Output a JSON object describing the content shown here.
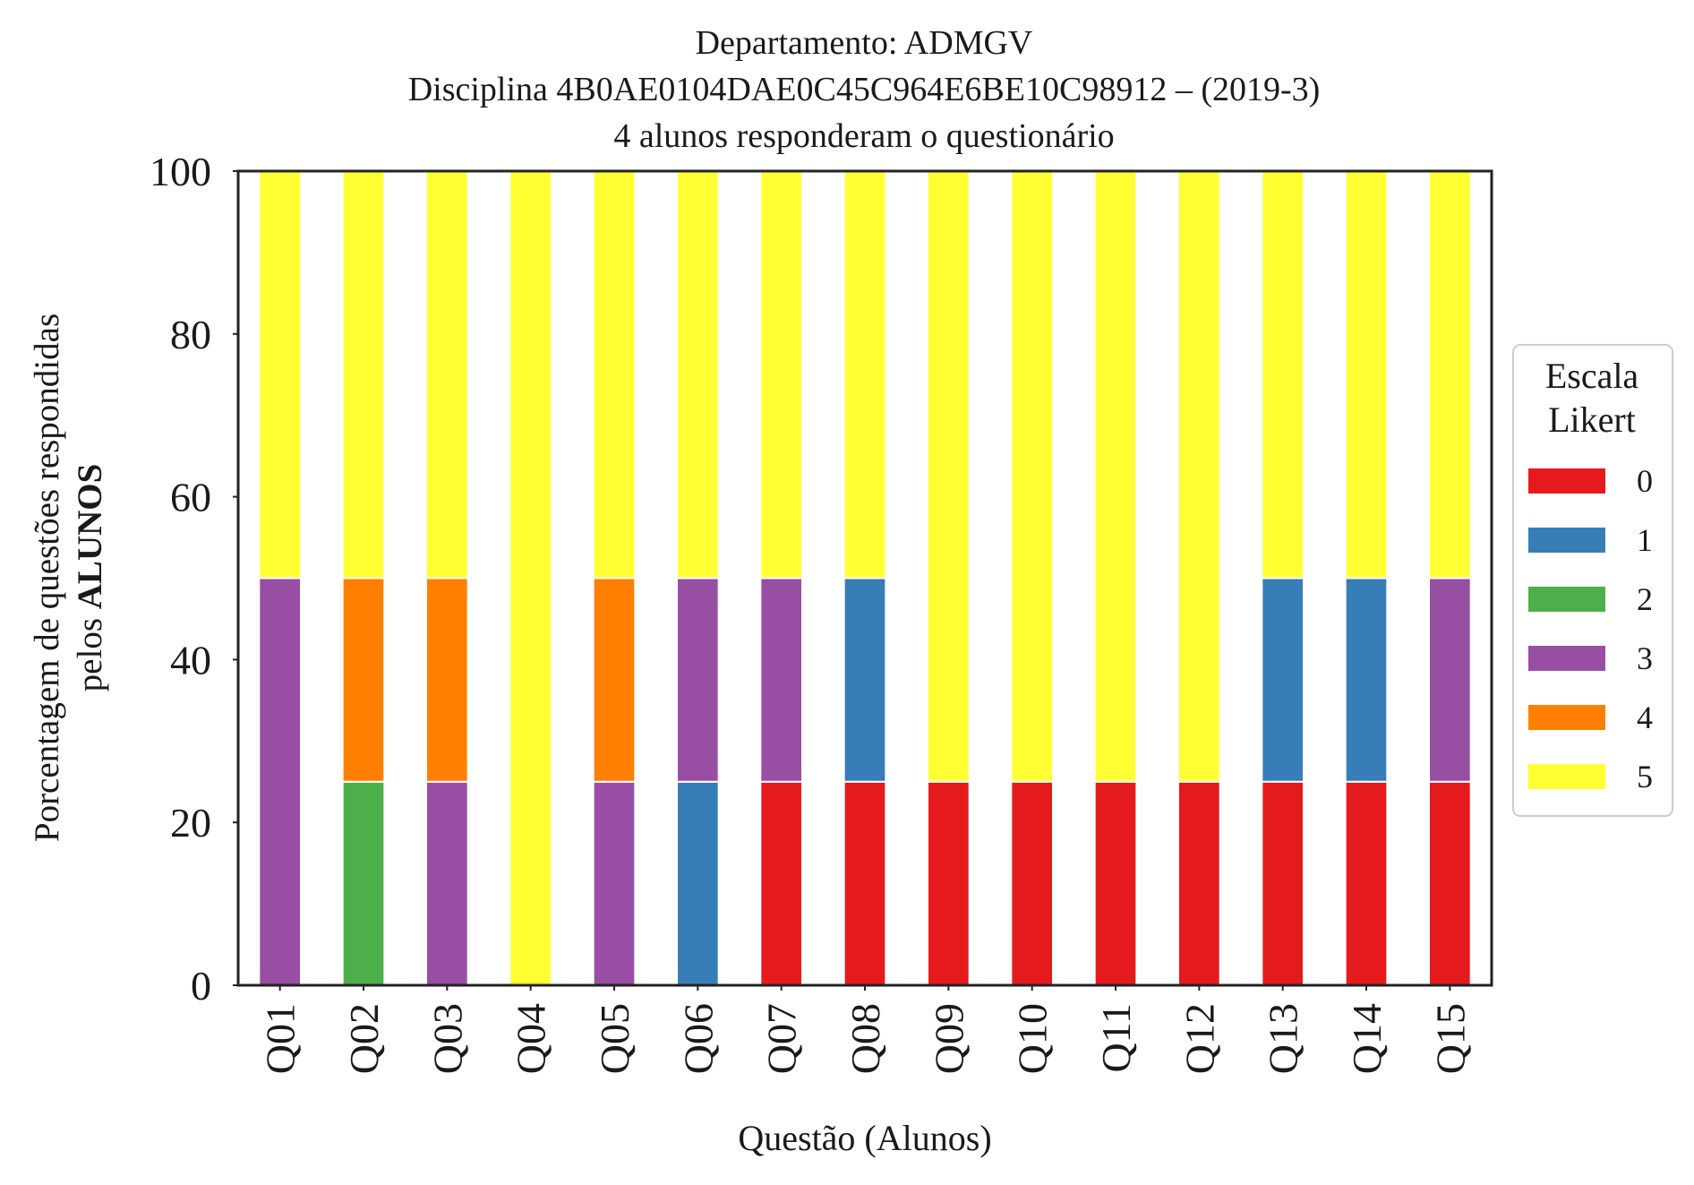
{
  "chart_data": {
    "type": "bar",
    "stacked": true,
    "title_lines": [
      "Departamento: ADMGV",
      "Disciplina 4B0AE0104DAE0C45C964E6BE10C98912 – (2019-3)",
      "4 alunos responderam o questionário"
    ],
    "xlabel": "Questão (Alunos)",
    "ylabel_line1": "Porcentagem de questões respondidas",
    "ylabel_line2_prefix": "pelos ",
    "ylabel_line2_bold": "ALUNOS",
    "ylim": [
      0,
      100
    ],
    "yticks": [
      0,
      20,
      40,
      60,
      80,
      100
    ],
    "grid": false,
    "categories": [
      "Q01",
      "Q02",
      "Q03",
      "Q04",
      "Q05",
      "Q06",
      "Q07",
      "Q08",
      "Q09",
      "Q10",
      "Q11",
      "Q12",
      "Q13",
      "Q14",
      "Q15"
    ],
    "legend": {
      "title_lines": [
        "Escala",
        "Likert"
      ],
      "placement": "right-center"
    },
    "series": [
      {
        "name": "0",
        "color": "#e41a1c",
        "values": [
          0,
          0,
          0,
          0,
          0,
          0,
          25,
          25,
          25,
          25,
          25,
          25,
          25,
          25,
          25
        ]
      },
      {
        "name": "1",
        "color": "#377eb8",
        "values": [
          0,
          0,
          0,
          0,
          0,
          25,
          0,
          25,
          0,
          0,
          0,
          0,
          25,
          25,
          0
        ]
      },
      {
        "name": "2",
        "color": "#4daf4a",
        "values": [
          0,
          25,
          0,
          0,
          0,
          0,
          0,
          0,
          0,
          0,
          0,
          0,
          0,
          0,
          0
        ]
      },
      {
        "name": "3",
        "color": "#984ea3",
        "values": [
          50,
          0,
          25,
          0,
          25,
          25,
          25,
          0,
          0,
          0,
          0,
          0,
          0,
          0,
          25
        ]
      },
      {
        "name": "4",
        "color": "#ff7f00",
        "values": [
          0,
          25,
          25,
          0,
          25,
          0,
          0,
          0,
          0,
          0,
          0,
          0,
          0,
          0,
          0
        ]
      },
      {
        "name": "5",
        "color": "#ffff33",
        "values": [
          50,
          50,
          50,
          100,
          50,
          50,
          50,
          50,
          75,
          75,
          75,
          75,
          50,
          50,
          50
        ]
      }
    ]
  }
}
